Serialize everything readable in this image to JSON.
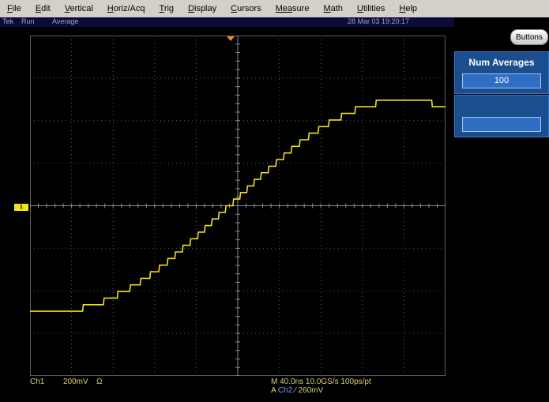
{
  "menu": [
    {
      "first": "F",
      "rest": "ile"
    },
    {
      "first": "E",
      "rest": "dit"
    },
    {
      "first": "V",
      "rest": "ertical"
    },
    {
      "first": "H",
      "rest": "oriz/Acq"
    },
    {
      "first": "T",
      "rest": "rig"
    },
    {
      "first": "D",
      "rest": "isplay"
    },
    {
      "first": "C",
      "rest": "ursors"
    },
    {
      "first": "Mea",
      "rest": "sure"
    },
    {
      "first": "M",
      "rest": "ath"
    },
    {
      "first": "U",
      "rest": "tilities"
    },
    {
      "first": "H",
      "rest": "elp"
    }
  ],
  "status": {
    "brand": "Tek",
    "run": "Run",
    "mode": "Average",
    "datetime": "28 Mar 03 19:20:17"
  },
  "side": {
    "buttons_label": "Buttons",
    "num_averages_title": "Num Averages",
    "num_averages_value": "100",
    "second_box_value": ""
  },
  "bottom": {
    "channel": "Ch1",
    "scale": "200mV",
    "ohm": "Ω",
    "timebase": "M 40.0ns 10.0GS/s  100ps/pt",
    "trigger_prefix": "A",
    "trigger_channel": "Ch2",
    "trigger_slope": "∕",
    "trigger_level": "260mV"
  },
  "ground_marker": "1",
  "colors": {
    "trace": "#f2e01a",
    "grid": "#5a5a5a",
    "panel": "#1a4e8f"
  },
  "waveform": {
    "divisions_x": 10,
    "divisions_y": 8,
    "steps": 32,
    "min_level": -0.62,
    "max_level": 0.62
  }
}
